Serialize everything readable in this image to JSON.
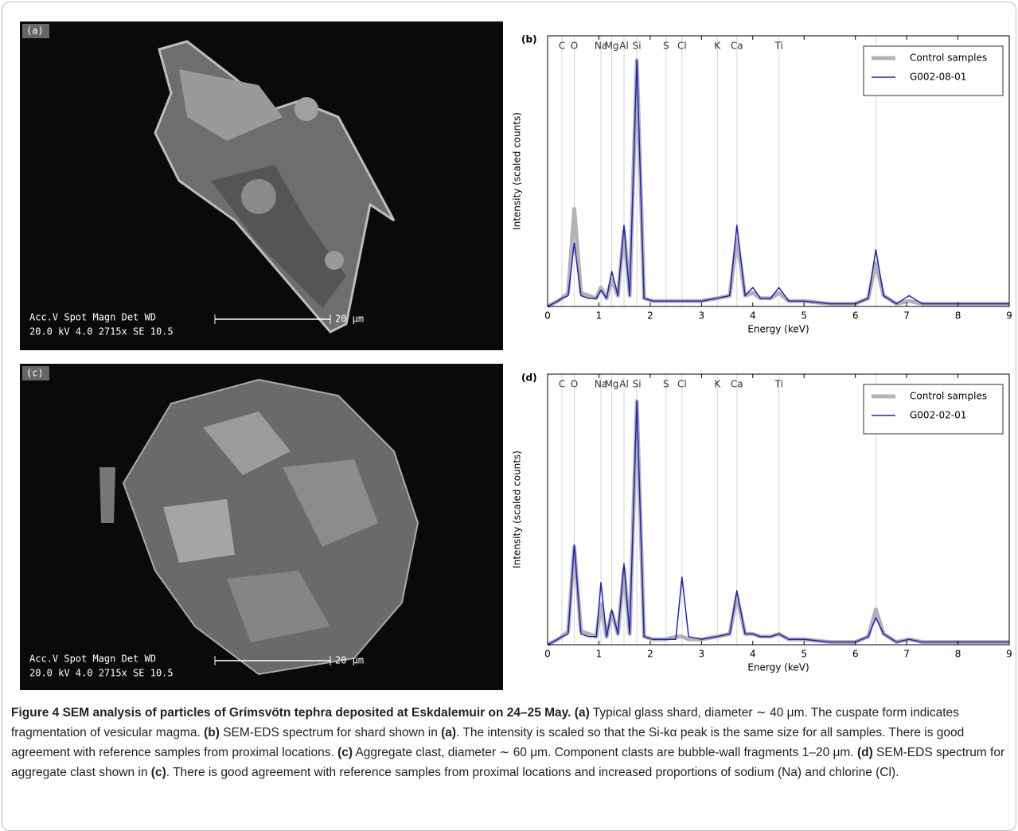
{
  "images": [
    {
      "label": "(a)",
      "info_top": "Acc.V  Spot Magn    Det  WD",
      "info_bottom": "20.0 kV 4.0  2715x   SE   10.5",
      "scale": "20 μm"
    },
    {
      "label": "(c)",
      "info_top": "Acc.V  Spot Magn    Det  WD",
      "info_bottom": "20.0 kV 4.0  2715x   SE   10.5",
      "scale": "20 μm"
    }
  ],
  "chart_data": [
    {
      "type": "line",
      "title": "(b)",
      "xlabel": "Energy (keV)",
      "ylabel": "Intensity (scaled counts)",
      "x": [
        0,
        0.2,
        0.28,
        0.4,
        0.52,
        0.65,
        0.8,
        0.95,
        1.04,
        1.15,
        1.25,
        1.37,
        1.49,
        1.6,
        1.74,
        1.88,
        2.05,
        2.3,
        2.5,
        2.62,
        2.75,
        3.0,
        3.3,
        3.55,
        3.69,
        3.85,
        4.0,
        4.15,
        4.35,
        4.51,
        4.7,
        5.0,
        5.5,
        6.0,
        6.25,
        6.4,
        6.55,
        6.8,
        7.05,
        7.3,
        8.0,
        9.0
      ],
      "xlim": [
        0,
        9
      ],
      "xticks": [
        0,
        1,
        2,
        3,
        4,
        5,
        6,
        7,
        8,
        9
      ],
      "ylim": [
        0,
        1
      ],
      "element_lines": [
        {
          "value": 0.28,
          "label": "C"
        },
        {
          "value": 0.52,
          "label": "O"
        },
        {
          "value": 1.04,
          "label": "Na"
        },
        {
          "value": 1.25,
          "label": "Mg"
        },
        {
          "value": 1.49,
          "label": "Al"
        },
        {
          "value": 1.74,
          "label": "Si"
        },
        {
          "value": 2.31,
          "label": "S"
        },
        {
          "value": 2.62,
          "label": "Cl"
        },
        {
          "value": 3.31,
          "label": "K"
        },
        {
          "value": 3.69,
          "label": "Ca"
        },
        {
          "value": 4.51,
          "label": "Ti"
        },
        6.4
      ],
      "legend": "upper right",
      "series": [
        {
          "name": "Control samples",
          "color": "#b3b3b3",
          "width": 5,
          "values": [
            0,
            0.02,
            0.03,
            0.05,
            0.36,
            0.05,
            0.04,
            0.03,
            0.07,
            0.03,
            0.1,
            0.04,
            0.28,
            0.04,
            0.91,
            0.03,
            0.02,
            0.02,
            0.02,
            0.02,
            0.02,
            0.02,
            0.03,
            0.04,
            0.25,
            0.04,
            0.05,
            0.03,
            0.03,
            0.05,
            0.02,
            0.02,
            0.01,
            0.01,
            0.03,
            0.16,
            0.04,
            0.01,
            0.02,
            0.01,
            0.01,
            0.01
          ]
        },
        {
          "name": "G002-08-01",
          "color": "#1f1fc8",
          "width": 1.5,
          "values": [
            0,
            0.02,
            0.03,
            0.04,
            0.235,
            0.04,
            0.03,
            0.03,
            0.06,
            0.03,
            0.13,
            0.04,
            0.3,
            0.04,
            0.91,
            0.03,
            0.02,
            0.02,
            0.02,
            0.02,
            0.02,
            0.02,
            0.03,
            0.04,
            0.3,
            0.04,
            0.07,
            0.03,
            0.03,
            0.07,
            0.02,
            0.02,
            0.01,
            0.01,
            0.03,
            0.21,
            0.04,
            0.01,
            0.04,
            0.01,
            0.01,
            0.01
          ]
        }
      ]
    },
    {
      "type": "line",
      "title": "(d)",
      "xlabel": "Energy (keV)",
      "ylabel": "Intensity (scaled counts)",
      "x": [
        0,
        0.2,
        0.28,
        0.4,
        0.52,
        0.65,
        0.8,
        0.95,
        1.04,
        1.15,
        1.25,
        1.37,
        1.49,
        1.6,
        1.74,
        1.88,
        2.05,
        2.3,
        2.5,
        2.62,
        2.75,
        3.0,
        3.3,
        3.55,
        3.69,
        3.85,
        4.0,
        4.15,
        4.35,
        4.51,
        4.7,
        5.0,
        5.5,
        6.0,
        6.25,
        6.4,
        6.55,
        6.8,
        7.05,
        7.3,
        8.0,
        9.0
      ],
      "xlim": [
        0,
        9
      ],
      "xticks": [
        0,
        1,
        2,
        3,
        4,
        5,
        6,
        7,
        8,
        9
      ],
      "ylim": [
        0,
        1
      ],
      "element_lines": [
        {
          "value": 0.28,
          "label": "C"
        },
        {
          "value": 0.52,
          "label": "O"
        },
        {
          "value": 1.04,
          "label": "Na"
        },
        {
          "value": 1.25,
          "label": "Mg"
        },
        {
          "value": 1.49,
          "label": "Al"
        },
        {
          "value": 1.74,
          "label": "Si"
        },
        {
          "value": 2.31,
          "label": "S"
        },
        {
          "value": 2.62,
          "label": "Cl"
        },
        {
          "value": 3.31,
          "label": "K"
        },
        {
          "value": 3.69,
          "label": "Ca"
        },
        {
          "value": 4.51,
          "label": "Ti"
        },
        6.4
      ],
      "legend": "upper right",
      "series": [
        {
          "name": "Control samples",
          "color": "#b3b3b3",
          "width": 5,
          "values": [
            0,
            0.02,
            0.03,
            0.05,
            0.36,
            0.05,
            0.04,
            0.03,
            0.15,
            0.03,
            0.12,
            0.04,
            0.28,
            0.04,
            0.9,
            0.03,
            0.02,
            0.02,
            0.03,
            0.03,
            0.02,
            0.02,
            0.03,
            0.04,
            0.18,
            0.04,
            0.04,
            0.03,
            0.03,
            0.04,
            0.02,
            0.02,
            0.01,
            0.01,
            0.03,
            0.13,
            0.04,
            0.01,
            0.02,
            0.01,
            0.01,
            0.01
          ]
        },
        {
          "name": "G002-02-01",
          "color": "#1f1fc8",
          "width": 1.5,
          "values": [
            0,
            0.02,
            0.03,
            0.04,
            0.37,
            0.04,
            0.03,
            0.03,
            0.23,
            0.03,
            0.13,
            0.04,
            0.3,
            0.04,
            0.9,
            0.03,
            0.02,
            0.02,
            0.02,
            0.25,
            0.03,
            0.02,
            0.03,
            0.04,
            0.2,
            0.04,
            0.04,
            0.03,
            0.03,
            0.04,
            0.02,
            0.02,
            0.01,
            0.01,
            0.03,
            0.1,
            0.04,
            0.01,
            0.02,
            0.01,
            0.01,
            0.01
          ]
        }
      ]
    }
  ],
  "caption": {
    "title": "Figure 4 SEM analysis of particles of Grímsvötn tephra deposited at Eskdalemuir on 24–25 May.",
    "refs": [
      "(a)",
      "(b)",
      "(a)",
      "(c)",
      "(d)",
      "(c)"
    ],
    "texts": [
      " Typical glass shard, diameter ∼ 40 μm. The cuspate form indicates fragmentation of vesicular magma. ",
      " SEM-EDS spectrum for shard shown in ",
      ". The intensity is scaled so that the Si-kα peak is the same size for all samples. There is good agreement with reference samples from proximal locations. ",
      " Aggregate clast, diameter ∼ 60 μm. Component clasts are bubble-wall fragments 1–20 μm. ",
      " SEM-EDS spectrum for aggregate clast shown in ",
      ". There is good agreement with reference samples from proximal locations and increased proportions of sodium (Na) and chlorine (Cl)."
    ]
  }
}
